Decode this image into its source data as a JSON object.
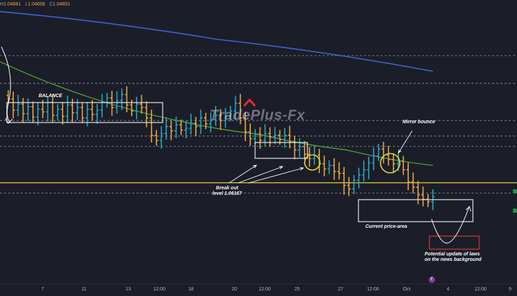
{
  "ohlc": {
    "high_label": "H",
    "high": "1.04881",
    "low_label": "L",
    "low": "1.04606",
    "close_label": "C",
    "close": "1.04851"
  },
  "watermark": "TradePlus-Fx",
  "annotations": {
    "balance": "BALANCE",
    "breakout_line1": "Break out",
    "breakout_line2": "level 1.06167",
    "mirror": "Mirror bounce",
    "current_area": "Current price-area",
    "potential_line1": "Potential update of laws",
    "potential_line2": "on the news background"
  },
  "event_flag": "F",
  "colors": {
    "background": "#1b1e28",
    "bull": "#2aa5c4",
    "bear": "#e8a64a",
    "ma_slow": "#3d63d6",
    "ma_fast": "#4ea73f",
    "support_line": "#dfd23a",
    "box": "#e6e6e6",
    "circle": "#e8d82a",
    "target_box": "#d23b3b",
    "peak_marker": "#e0302a"
  },
  "chart_data": {
    "type": "ohlc",
    "title": "",
    "xlabel": "",
    "ylabel": "",
    "ylim": [
      1.045,
      1.077
    ],
    "x_tick_labels": [
      "7",
      "11",
      "13",
      "12:00",
      "18",
      "20",
      "12:00",
      "25",
      "27",
      "12:00",
      "Oct",
      "4",
      "12:00",
      "9"
    ],
    "support_level": 1.0565,
    "breakout_level": 1.06167,
    "dashed_levels": [
      1.0712,
      1.068,
      1.0637,
      1.0619,
      1.0607,
      1.0553
    ],
    "series": [
      {
        "name": "",
        "kind": "bars",
        "close": [
          1.0662,
          1.0649,
          1.0656,
          1.0645,
          1.0653,
          1.0641,
          1.065,
          1.0647,
          1.0658,
          1.0643,
          1.065,
          1.0642,
          1.0655,
          1.0646,
          1.0652,
          1.064,
          1.065,
          1.0644,
          1.0649,
          1.0658,
          1.0663,
          1.0652,
          1.066,
          1.0667,
          1.0655,
          1.0648,
          1.0656,
          1.0652,
          1.064,
          1.062,
          1.0614,
          1.0622,
          1.063,
          1.0625,
          1.0632,
          1.0626,
          1.0628,
          1.0634,
          1.063,
          1.064,
          1.0633,
          1.0638,
          1.0643,
          1.0637,
          1.0642,
          1.0648,
          1.0657,
          1.064,
          1.0624,
          1.0616,
          1.0621,
          1.0614,
          1.0622,
          1.0618,
          1.062,
          1.0615,
          1.062,
          1.0612,
          1.0603,
          1.0607,
          1.0598,
          1.0593,
          1.0597,
          1.0587,
          1.0581,
          1.0585,
          1.0578,
          1.0576,
          1.0562,
          1.0558,
          1.0568,
          1.0574,
          1.058,
          1.0588,
          1.0596,
          1.0604,
          1.0597,
          1.0592,
          1.0587,
          1.059,
          1.058,
          1.0566,
          1.056,
          1.0551,
          1.0546,
          1.0543,
          1.0549
        ]
      },
      {
        "name": "",
        "kind": "ma",
        "values": [
          1.0763,
          1.0731,
          1.0694
        ]
      },
      {
        "name": "",
        "kind": "ma",
        "values": [
          1.0705,
          1.0665,
          1.0638,
          1.0621,
          1.0603,
          1.0585
        ]
      }
    ]
  }
}
